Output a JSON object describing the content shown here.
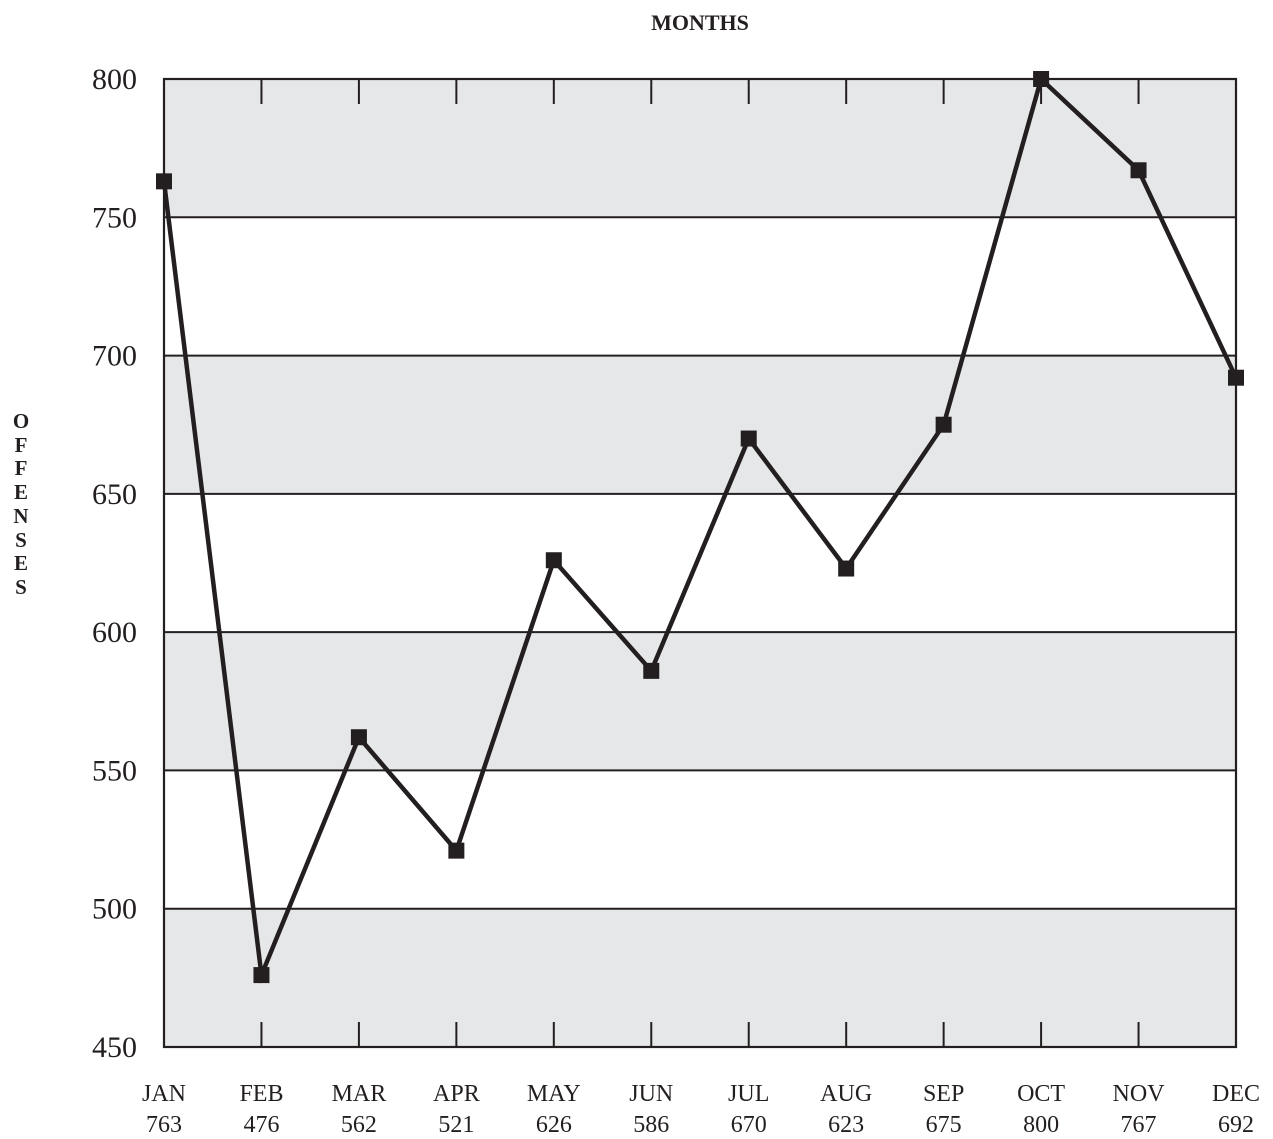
{
  "chart_data": {
    "type": "line",
    "xlabel": "MONTHS",
    "ylabel": "OFFENSES",
    "categories": [
      "JAN",
      "FEB",
      "MAR",
      "APR",
      "MAY",
      "JUN",
      "JUL",
      "AUG",
      "SEP",
      "OCT",
      "NOV",
      "DEC"
    ],
    "values": [
      763,
      476,
      562,
      521,
      626,
      586,
      670,
      623,
      675,
      800,
      767,
      692
    ],
    "ylim": [
      450,
      800
    ],
    "yticks": [
      450,
      500,
      550,
      600,
      650,
      700,
      750,
      800
    ],
    "grid": true,
    "legend": "none",
    "colors": {
      "line": "#231f20",
      "band": "#e6e7e8",
      "background": "#ffffff"
    },
    "marker": "square"
  }
}
